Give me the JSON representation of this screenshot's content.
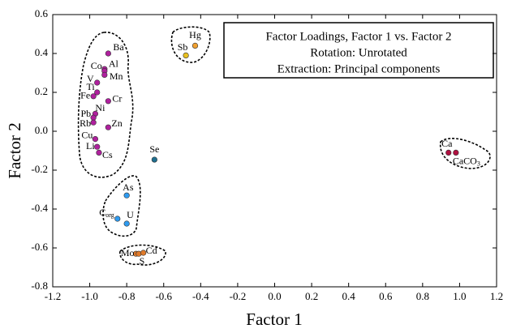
{
  "chart_data": {
    "type": "scatter",
    "xlabel": "Factor 1",
    "ylabel": "Factor 2",
    "annotation": [
      "Factor Loadings, Factor 1 vs. Factor 2",
      "Rotation: Unrotated",
      "Extraction: Principal components"
    ],
    "xlim": [
      -1.2,
      1.2
    ],
    "ylim": [
      -0.8,
      0.6
    ],
    "xticks": [
      -1.2,
      {
        "value": -1,
        "label": "-1.0"
      },
      -0.8,
      -0.6,
      -0.4,
      -0.2,
      {
        "value": 0,
        "label": "0.0"
      },
      0.2,
      0.4,
      0.6,
      0.8,
      {
        "value": 1,
        "label": "1.0"
      },
      1.2
    ],
    "yticks": [
      -0.8,
      -0.6,
      -0.4,
      -0.2,
      {
        "value": 0,
        "label": "0.0"
      },
      0.2,
      0.4,
      0.6
    ],
    "series": [
      {
        "color": "#b0209e",
        "labels": [
          "Ba",
          "Co",
          "Al",
          "Mn",
          "V",
          "Ti",
          "Fe",
          "Cr",
          "Ni",
          "Pb",
          "Rb",
          "Zn",
          "Cu",
          "Li",
          "Cs"
        ],
        "x": [
          -0.9,
          -0.92,
          -0.92,
          -0.92,
          -0.96,
          -0.96,
          -0.98,
          -0.9,
          -0.97,
          -0.98,
          -0.98,
          -0.9,
          -0.97,
          -0.96,
          -0.95
        ],
        "values": [
          0.4,
          0.32,
          0.31,
          0.29,
          0.25,
          0.2,
          0.18,
          0.155,
          0.09,
          0.07,
          0.045,
          0.02,
          -0.04,
          -0.08,
          -0.11
        ]
      },
      {
        "color": "#1f6f8f",
        "labels": [
          "Se"
        ],
        "x": [
          -0.65
        ],
        "values": [
          -0.146
        ]
      },
      {
        "color": "#2f9bf0",
        "labels": [
          "As",
          {
            "text": "C",
            "sub": "org"
          },
          "U"
        ],
        "x": [
          -0.8,
          -0.85,
          -0.8
        ],
        "values": [
          -0.33,
          -0.45,
          -0.475
        ]
      },
      {
        "color": "#e07a2a",
        "labels": [
          "Mo",
          "S",
          "Cd"
        ],
        "x": [
          -0.75,
          -0.735,
          -0.71
        ],
        "values": [
          -0.63,
          -0.63,
          -0.625
        ]
      },
      {
        "color": "#f0a030",
        "labels": [
          "Hg"
        ],
        "x": [
          -0.43
        ],
        "values": [
          0.44
        ]
      },
      {
        "color": "#e8c020",
        "labels": [
          "Sb"
        ],
        "x": [
          -0.48
        ],
        "values": [
          0.39
        ]
      },
      {
        "color": "#b01040",
        "labels": [
          "Ca",
          {
            "text": "CaCO",
            "sub": "3"
          }
        ],
        "x": [
          0.94,
          0.98
        ],
        "values": [
          -0.11,
          -0.11
        ]
      }
    ]
  }
}
